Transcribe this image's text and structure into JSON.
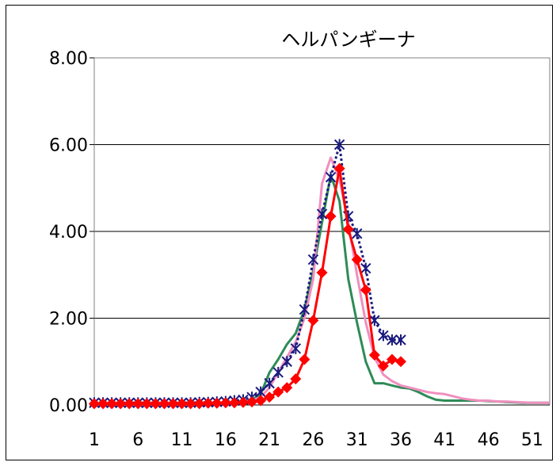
{
  "chart_data": {
    "type": "line",
    "title": "ヘルパンギーナ",
    "xlabel": "",
    "ylabel": "",
    "ylim": [
      0,
      8
    ],
    "xlim": [
      1,
      53
    ],
    "y_ticks": [
      "0.00",
      "2.00",
      "4.00",
      "6.00",
      "8.00"
    ],
    "x_ticks": [
      "1",
      "6",
      "11",
      "16",
      "21",
      "26",
      "31",
      "36",
      "41",
      "46",
      "51"
    ],
    "grid": "horizontal",
    "legend": "none",
    "series": [
      {
        "color": "#2e8b57",
        "style": "line",
        "x": [
          1,
          2,
          3,
          4,
          5,
          6,
          7,
          8,
          9,
          10,
          11,
          12,
          13,
          14,
          15,
          16,
          17,
          18,
          19,
          20,
          21,
          22,
          23,
          24,
          25,
          26,
          27,
          28,
          29,
          30,
          31,
          32,
          33,
          34,
          35,
          36,
          37,
          38,
          39,
          40,
          41,
          42,
          43,
          44,
          45,
          46,
          47,
          48,
          49,
          50,
          51,
          52,
          53
        ],
        "values": [
          0.05,
          0.05,
          0.05,
          0.05,
          0.05,
          0.05,
          0.05,
          0.05,
          0.05,
          0.05,
          0.05,
          0.05,
          0.05,
          0.05,
          0.05,
          0.06,
          0.07,
          0.09,
          0.12,
          0.25,
          0.75,
          1.05,
          1.4,
          1.65,
          2.2,
          3.1,
          4.2,
          5.3,
          4.7,
          2.9,
          1.9,
          1.0,
          0.5,
          0.5,
          0.45,
          0.4,
          0.38,
          0.3,
          0.2,
          0.12,
          0.1,
          0.1,
          0.1,
          0.1,
          0.1,
          0.09,
          0.08,
          0.07,
          0.06,
          0.05,
          0.05,
          0.05,
          0.05
        ]
      },
      {
        "color": "#f08fbf",
        "style": "line",
        "x": [
          1,
          2,
          3,
          4,
          5,
          6,
          7,
          8,
          9,
          10,
          11,
          12,
          13,
          14,
          15,
          16,
          17,
          18,
          19,
          20,
          21,
          22,
          23,
          24,
          25,
          26,
          27,
          28,
          29,
          30,
          31,
          32,
          33,
          34,
          35,
          36,
          37,
          38,
          39,
          40,
          41,
          42,
          43,
          44,
          45,
          46,
          47,
          48,
          49,
          50,
          51,
          52,
          53
        ],
        "values": [
          0.05,
          0.05,
          0.05,
          0.05,
          0.05,
          0.05,
          0.05,
          0.05,
          0.05,
          0.05,
          0.05,
          0.05,
          0.05,
          0.05,
          0.05,
          0.06,
          0.07,
          0.08,
          0.1,
          0.18,
          0.4,
          0.75,
          1.1,
          1.45,
          2.0,
          2.9,
          5.1,
          5.7,
          5.2,
          4.2,
          3.0,
          1.9,
          1.1,
          0.7,
          0.55,
          0.45,
          0.4,
          0.35,
          0.3,
          0.27,
          0.25,
          0.2,
          0.15,
          0.12,
          0.1,
          0.1,
          0.08,
          0.08,
          0.07,
          0.06,
          0.05,
          0.05,
          0.05
        ]
      },
      {
        "color": "#1a1a7e",
        "style": "dotted-star",
        "x": [
          1,
          2,
          3,
          4,
          5,
          6,
          7,
          8,
          9,
          10,
          11,
          12,
          13,
          14,
          15,
          16,
          17,
          18,
          19,
          20,
          21,
          22,
          23,
          24,
          25,
          26,
          27,
          28,
          29,
          30,
          31,
          32,
          33,
          34,
          35,
          36
        ],
        "values": [
          0.05,
          0.05,
          0.05,
          0.05,
          0.05,
          0.05,
          0.05,
          0.05,
          0.05,
          0.05,
          0.05,
          0.05,
          0.06,
          0.06,
          0.07,
          0.08,
          0.1,
          0.12,
          0.18,
          0.3,
          0.5,
          0.75,
          1.0,
          1.3,
          2.2,
          3.35,
          4.4,
          5.25,
          6.0,
          4.35,
          3.95,
          3.15,
          1.95,
          1.6,
          1.5,
          1.5
        ]
      },
      {
        "color": "#ff0000",
        "style": "line-diamond",
        "x": [
          1,
          2,
          3,
          4,
          5,
          6,
          7,
          8,
          9,
          10,
          11,
          12,
          13,
          14,
          15,
          16,
          17,
          18,
          19,
          20,
          21,
          22,
          23,
          24,
          25,
          26,
          27,
          28,
          29,
          30,
          31,
          32,
          33,
          34,
          35,
          36
        ],
        "values": [
          0.03,
          0.03,
          0.03,
          0.03,
          0.03,
          0.03,
          0.03,
          0.03,
          0.03,
          0.03,
          0.03,
          0.03,
          0.03,
          0.04,
          0.04,
          0.05,
          0.05,
          0.06,
          0.07,
          0.1,
          0.18,
          0.3,
          0.4,
          0.6,
          1.05,
          1.95,
          3.05,
          4.35,
          5.45,
          4.05,
          3.35,
          2.65,
          1.15,
          0.9,
          1.05,
          1.0
        ]
      }
    ]
  }
}
